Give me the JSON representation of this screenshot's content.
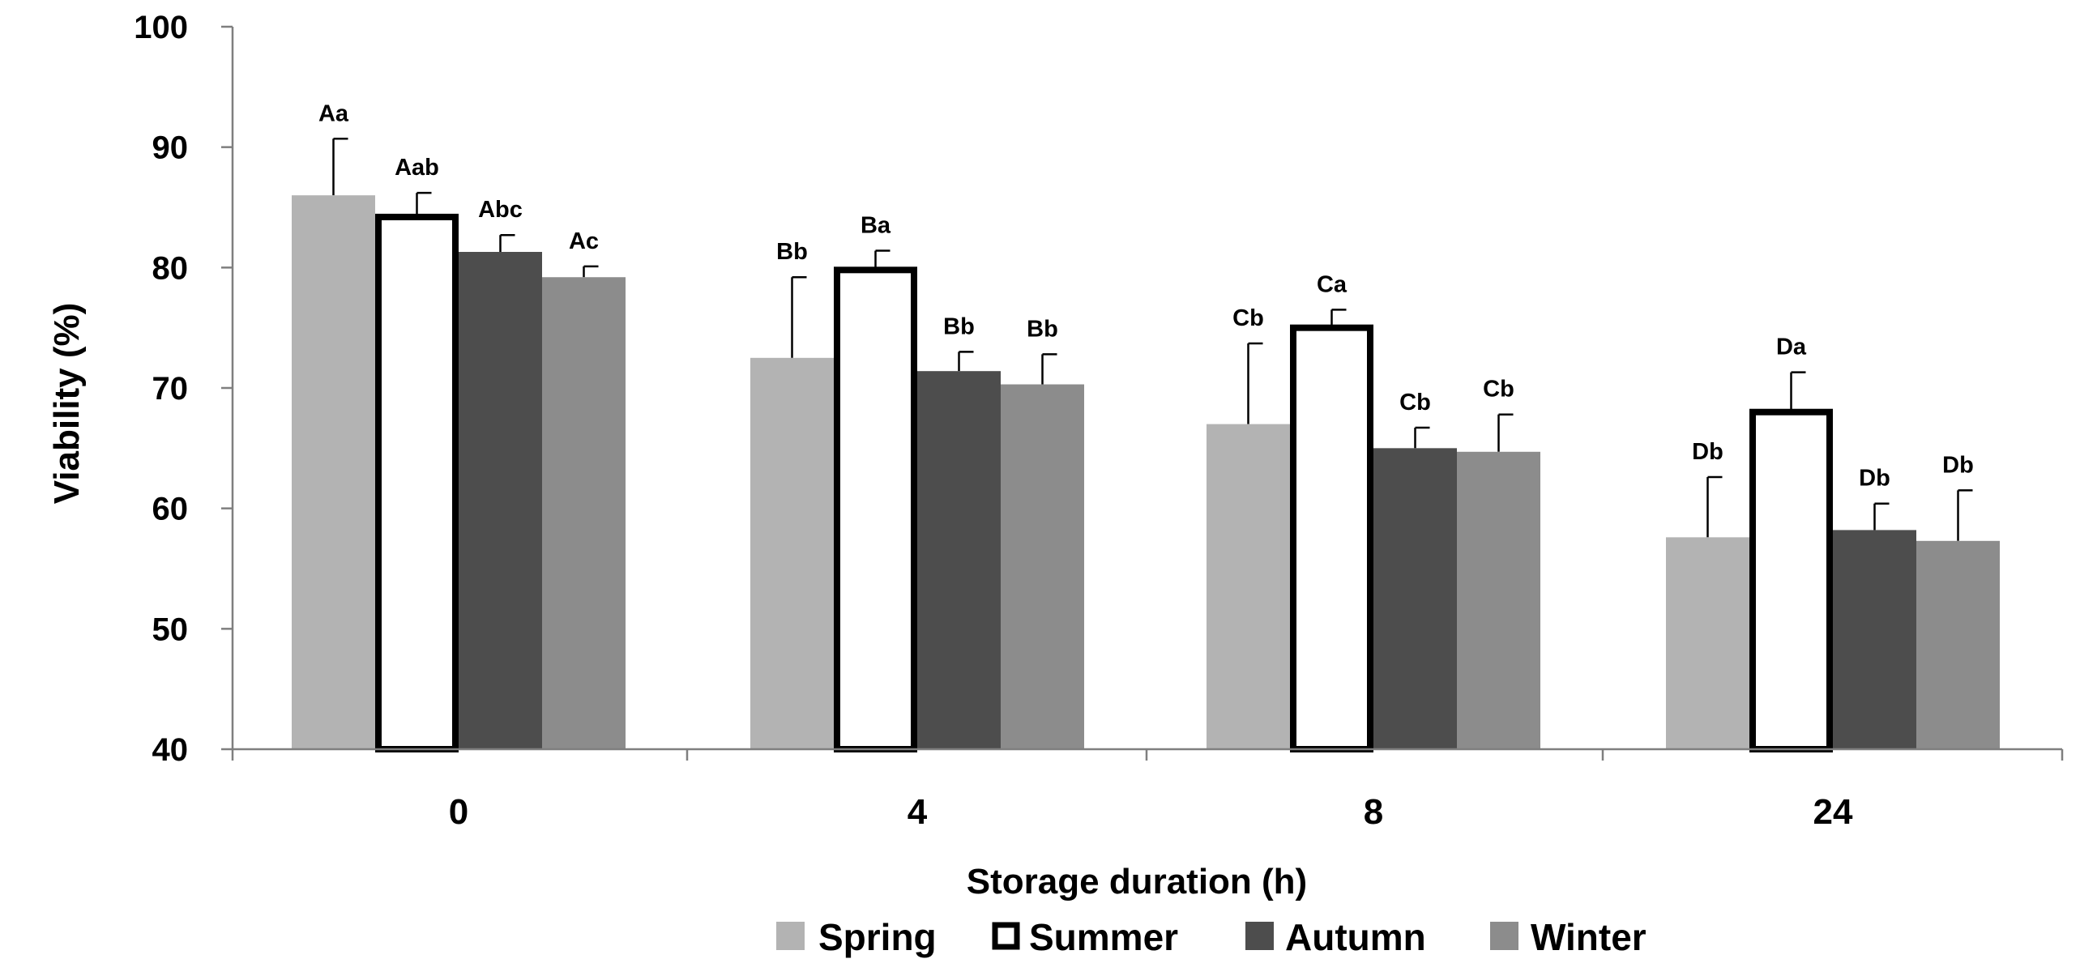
{
  "chart_data": {
    "type": "bar",
    "title": "",
    "xlabel": "Storage duration (h)",
    "ylabel": "Viability (%)",
    "ylim": [
      40,
      100
    ],
    "yticks": [
      40,
      50,
      60,
      70,
      80,
      90,
      100
    ],
    "categories": [
      "0",
      "4",
      "8",
      "24"
    ],
    "series": [
      {
        "name": "Spring",
        "color": "#b3b3b3",
        "style": "fill",
        "values": [
          86.0,
          72.5,
          67.0,
          57.6
        ],
        "errors": [
          4.7,
          6.7,
          6.7,
          5.0
        ],
        "labels": [
          "Aa",
          "Bb",
          "Cb",
          "Db"
        ]
      },
      {
        "name": "Summer",
        "color": "#ffffff",
        "stroke": "#000000",
        "style": "outline",
        "values": [
          84.2,
          79.8,
          75.0,
          68.0
        ],
        "errors": [
          2.0,
          1.6,
          1.5,
          3.3
        ],
        "labels": [
          "Aab",
          "Ba",
          "Ca",
          "Da"
        ]
      },
      {
        "name": "Autumn",
        "color": "#4d4d4d",
        "style": "fill",
        "values": [
          81.3,
          71.4,
          65.0,
          58.2
        ],
        "errors": [
          1.4,
          1.6,
          1.7,
          2.2
        ],
        "labels": [
          "Abc",
          "Bb",
          "Cb",
          "Db"
        ]
      },
      {
        "name": "Winter",
        "color": "#8c8c8c",
        "style": "fill",
        "values": [
          79.2,
          70.3,
          64.7,
          57.3
        ],
        "errors": [
          0.9,
          2.5,
          3.1,
          4.2
        ],
        "labels": [
          "Ac",
          "Bb",
          "Cb",
          "Db"
        ]
      }
    ],
    "legend_position": "bottom",
    "grid": false
  }
}
